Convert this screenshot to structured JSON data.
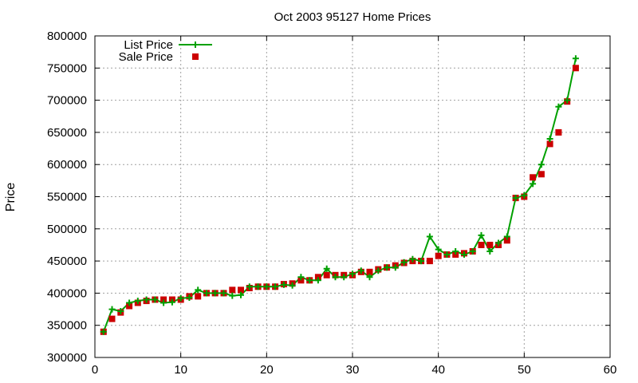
{
  "chart_data": {
    "type": "line",
    "title": "Oct 2003 95127 Home Prices",
    "xlabel": "",
    "ylabel": "Price",
    "xlim": [
      0,
      60
    ],
    "ylim": [
      300000,
      800000
    ],
    "x_ticks": [
      0,
      10,
      20,
      30,
      40,
      50,
      60
    ],
    "y_ticks": [
      300000,
      350000,
      400000,
      450000,
      500000,
      550000,
      600000,
      650000,
      700000,
      750000,
      800000
    ],
    "grid": true,
    "legend_position": "top-left",
    "x": [
      1,
      2,
      3,
      4,
      5,
      6,
      7,
      8,
      9,
      10,
      11,
      12,
      13,
      14,
      15,
      16,
      17,
      18,
      19,
      20,
      21,
      22,
      23,
      24,
      25,
      26,
      27,
      28,
      29,
      30,
      31,
      32,
      33,
      34,
      35,
      36,
      37,
      38,
      39,
      40,
      41,
      42,
      43,
      44,
      45,
      46,
      47,
      48,
      49,
      50,
      51,
      52,
      53,
      54,
      55,
      56
    ],
    "series": [
      {
        "name": "List Price",
        "style": "line-cross",
        "color": "#00a000",
        "values": [
          340000,
          375000,
          372000,
          385000,
          388000,
          390000,
          390000,
          385000,
          386000,
          392000,
          393000,
          405000,
          400000,
          400000,
          400000,
          396000,
          397000,
          410000,
          410000,
          410000,
          410000,
          413000,
          412000,
          425000,
          420000,
          420000,
          438000,
          425000,
          425000,
          430000,
          435000,
          425000,
          435000,
          440000,
          440000,
          448000,
          453000,
          450000,
          488000,
          468000,
          460000,
          465000,
          460000,
          465000,
          490000,
          465000,
          478000,
          488000,
          548000,
          552000,
          570000,
          600000,
          640000,
          690000,
          700000,
          765000
        ]
      },
      {
        "name": "Sale Price",
        "style": "square-marker",
        "color": "#cc0000",
        "values": [
          340000,
          360000,
          370000,
          380000,
          385000,
          388000,
          390000,
          390000,
          390000,
          390000,
          395000,
          395000,
          400000,
          400000,
          400000,
          405000,
          405000,
          408000,
          410000,
          410000,
          410000,
          414000,
          415000,
          420000,
          420000,
          425000,
          428000,
          428000,
          428000,
          428000,
          433000,
          433000,
          437000,
          440000,
          443000,
          447000,
          450000,
          450000,
          450000,
          458000,
          460000,
          460000,
          462000,
          465000,
          475000,
          475000,
          475000,
          482000,
          548000,
          550000,
          580000,
          585000,
          632000,
          650000,
          698000,
          750000
        ]
      }
    ]
  }
}
